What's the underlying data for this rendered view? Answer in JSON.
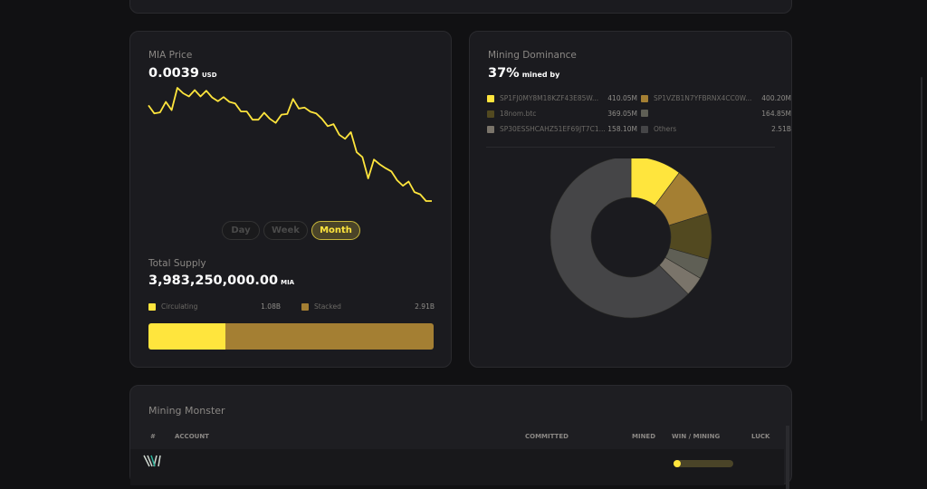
{
  "price_card": {
    "title": "MIA Price",
    "value": "0.0039",
    "unit": "USD",
    "ranges": [
      "Day",
      "Week",
      "Month"
    ],
    "active_range": "Month",
    "line_color": "#ffe53d",
    "chart_data": {
      "type": "line",
      "values": [
        0.0054,
        0.005275,
        0.00529,
        0.005455,
        0.005325,
        0.005675,
        0.00559,
        0.00554,
        0.00564,
        0.00554,
        0.00563,
        0.005525,
        0.005465,
        0.00553,
        0.005455,
        0.00543,
        0.005305,
        0.005305,
        0.005175,
        0.005175,
        0.005285,
        0.00519,
        0.005125,
        0.005255,
        0.005265,
        0.0055,
        0.00535,
        0.005365,
        0.0053,
        0.005275,
        0.00519,
        0.005075,
        0.005105,
        0.00494,
        0.004875,
        0.00498,
        0.004665,
        0.00459,
        0.004255,
        0.00455,
        0.004475,
        0.004415,
        0.004365,
        0.004225,
        0.00414,
        0.004205,
        0.00404,
        0.004005,
        0.0039,
        0.0039
      ],
      "grid": false
    }
  },
  "supply": {
    "title": "Total Supply",
    "value": "3,983,250,000.00",
    "unit": "MIA",
    "items": [
      {
        "label": "Circulating",
        "value": "1.08B",
        "amount": 1.08,
        "color": "#ffe53d"
      },
      {
        "label": "Stacked",
        "value": "2.91B",
        "amount": 2.91,
        "color": "#a47f33"
      }
    ]
  },
  "dominance": {
    "title": "Mining Dominance",
    "value": "37%",
    "suffix": "mined by",
    "items": [
      {
        "label": "SP1FJ0MY8M18KZF43E85W...",
        "value": "410.05M",
        "amount": 410.05,
        "color": "#ffe53d"
      },
      {
        "label": "SP1VZB1N7YFBRNX4CC0W...",
        "value": "400.20M",
        "amount": 400.2,
        "color": "#a47f33"
      },
      {
        "label": "18nom.btc",
        "value": "369.05M",
        "amount": 369.05,
        "color": "#524920"
      },
      {
        "label": "",
        "value": "164.85M",
        "amount": 164.85,
        "color": "#5f5f55"
      },
      {
        "label": "SP30ESSHCAHZ51EF69JT7C1...",
        "value": "158.10M",
        "amount": 158.1,
        "color": "#7a746a"
      },
      {
        "label": "Others",
        "value": "2.51B",
        "amount": 2510,
        "color": "#454547"
      }
    ]
  },
  "monster": {
    "title": "Mining Monster",
    "columns": [
      "#",
      "ACCOUNT",
      "COMMITTED",
      "MINED",
      "WIN / MINING",
      "LUCK"
    ]
  }
}
